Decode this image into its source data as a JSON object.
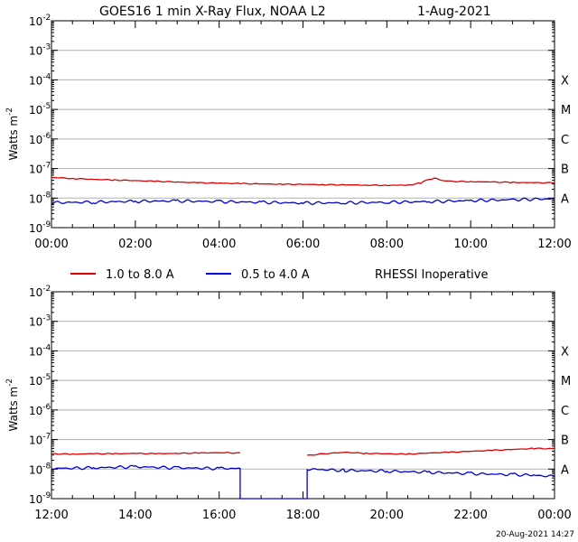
{
  "title": "GOES16 1 min X-Ray Flux, NOAA L2",
  "date": "1-Aug-2021",
  "timestamp": "20-Aug-2021 14:27",
  "legend": {
    "long": "1.0 to 8.0 A",
    "short": "0.5 to 4.0 A",
    "note": "RHESSI Inoperative"
  },
  "colors": {
    "long": "#dd0000",
    "short": "#0000dd",
    "grid": "#b0b0b0"
  },
  "chart_data": [
    {
      "type": "line",
      "ylabel": "Watts m",
      "ylabel_sup": "-2",
      "yscale": "log",
      "ylim": [
        1e-09,
        0.01
      ],
      "ytick_exponents": [
        "-9",
        "-8",
        "-7",
        "-6",
        "-5",
        "-4",
        "-3",
        "-2"
      ],
      "class_labels": [
        "A",
        "B",
        "C",
        "M",
        "X"
      ],
      "xlim_hours": [
        0,
        12
      ],
      "x_tick_labels": [
        "00:00",
        "02:00",
        "04:00",
        "06:00",
        "08:00",
        "10:00",
        "12:00"
      ],
      "grid": true,
      "series": [
        {
          "name": "1.0 to 8.0 A",
          "x_hours": [
            0,
            0.5,
            1,
            1.5,
            2,
            2.5,
            3,
            3.5,
            4,
            4.5,
            5,
            5.5,
            6,
            6.5,
            7,
            7.5,
            8,
            8.5,
            8.8,
            9.0,
            9.15,
            9.3,
            9.5,
            10,
            10.5,
            11,
            11.5,
            12
          ],
          "values": [
            5e-08,
            4.6e-08,
            4.3e-08,
            4.1e-08,
            3.9e-08,
            3.7e-08,
            3.5e-08,
            3.3e-08,
            3.2e-08,
            3.1e-08,
            3e-08,
            2.95e-08,
            2.9e-08,
            2.85e-08,
            2.8e-08,
            2.75e-08,
            2.7e-08,
            2.75e-08,
            3.2e-08,
            4.3e-08,
            4.7e-08,
            4e-08,
            3.7e-08,
            3.6e-08,
            3.5e-08,
            3.4e-08,
            3.3e-08,
            3.3e-08
          ]
        },
        {
          "name": "0.5 to 4.0 A",
          "x_hours": [
            0,
            1,
            2,
            3,
            4,
            5,
            6,
            7,
            8,
            9,
            10,
            11,
            12
          ],
          "values": [
            7e-09,
            7.3e-09,
            7.8e-09,
            8e-09,
            7.6e-09,
            7.2e-09,
            6.8e-09,
            6.9e-09,
            7.2e-09,
            7.6e-09,
            8.2e-09,
            8.8e-09,
            9.5e-09
          ]
        }
      ]
    },
    {
      "type": "line",
      "ylabel": "Watts m",
      "ylabel_sup": "-2",
      "yscale": "log",
      "ylim": [
        1e-09,
        0.01
      ],
      "ytick_exponents": [
        "-9",
        "-8",
        "-7",
        "-6",
        "-5",
        "-4",
        "-3",
        "-2"
      ],
      "class_labels": [
        "A",
        "B",
        "C",
        "M",
        "X"
      ],
      "xlim_hours": [
        12,
        24
      ],
      "x_tick_labels": [
        "12:00",
        "14:00",
        "16:00",
        "18:00",
        "20:00",
        "22:00",
        "00:00"
      ],
      "grid": true,
      "series": [
        {
          "name": "1.0 to 8.0 A",
          "segments": [
            {
              "x_hours": [
                12,
                12.5,
                13,
                13.5,
                14,
                14.5,
                15,
                15.5,
                16,
                16.5
              ],
              "values": [
                3.3e-08,
                3.2e-08,
                3.3e-08,
                3.3e-08,
                3.4e-08,
                3.3e-08,
                3.4e-08,
                3.5e-08,
                3.6e-08,
                3.5e-08
              ]
            },
            {
              "x_hours": [
                18.1,
                18.5,
                19,
                19.5,
                20,
                20.5,
                21,
                21.5,
                22,
                22.5,
                23,
                23.5,
                24
              ],
              "values": [
                2.9e-08,
                3.3e-08,
                3.7e-08,
                3.4e-08,
                3.3e-08,
                3.2e-08,
                3.5e-08,
                3.7e-08,
                4e-08,
                4.3e-08,
                4.6e-08,
                5e-08,
                4.9e-08
              ]
            }
          ]
        },
        {
          "name": "0.5 to 4.0 A",
          "segments": [
            {
              "x_hours": [
                12,
                13,
                14,
                15,
                16,
                16.5,
                16.5,
                18.1,
                18.1
              ],
              "values": [
                1.05e-08,
                1.1e-08,
                1.2e-08,
                1.1e-08,
                1.05e-08,
                1.05e-08,
                6e-10,
                6e-10,
                1e-08
              ]
            },
            {
              "x_hours": [
                18.1,
                19,
                20,
                21,
                22,
                23,
                23.5,
                24
              ],
              "values": [
                1e-08,
                9e-09,
                8.5e-09,
                7.8e-09,
                7e-09,
                6.5e-09,
                6.2e-09,
                5.6e-09
              ]
            }
          ]
        }
      ]
    }
  ]
}
